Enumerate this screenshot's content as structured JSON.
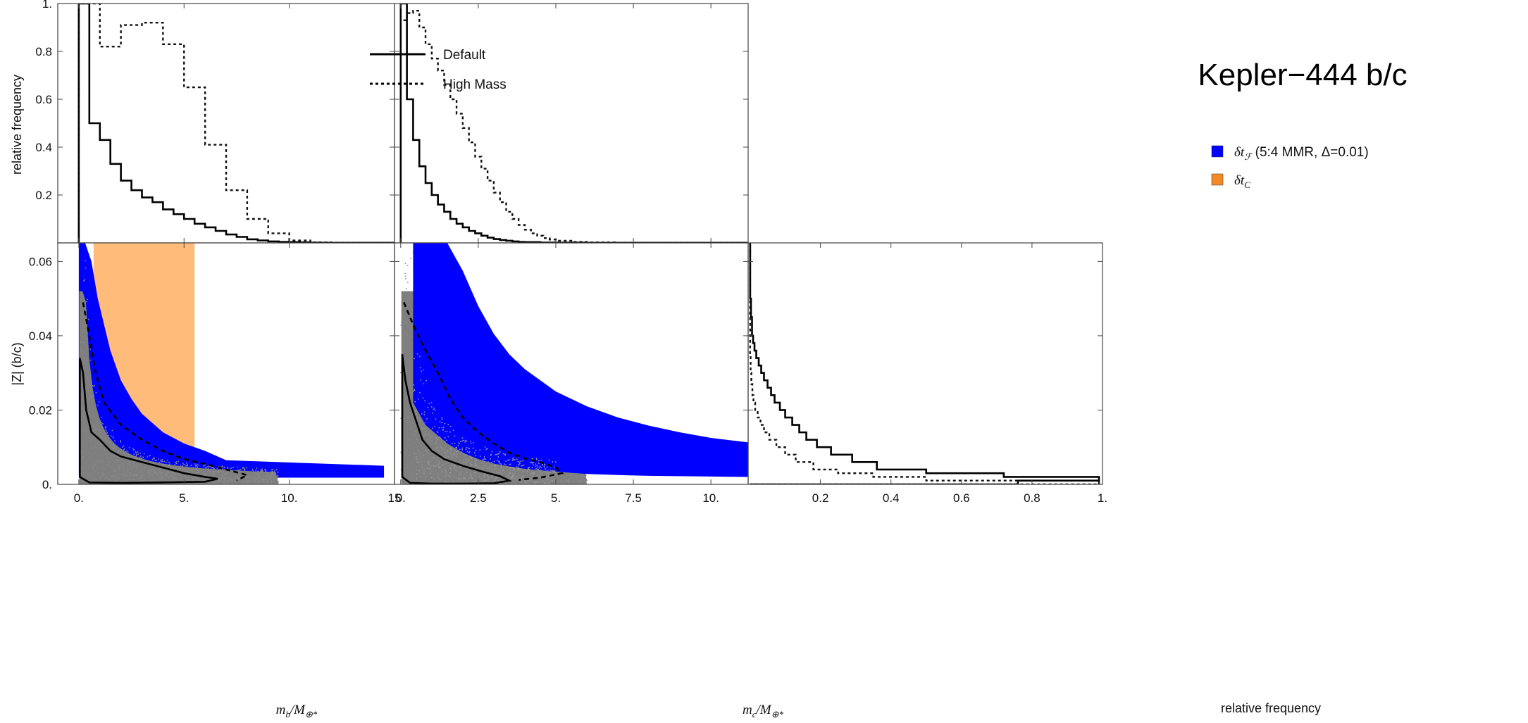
{
  "chart_data": {
    "type": "corner_plot",
    "title": "Kepler−444 b/c",
    "legend_histogram": [
      {
        "label": "Default",
        "style": "solid"
      },
      {
        "label": "High Mass",
        "style": "dotted"
      }
    ],
    "legend_regions": [
      {
        "label_main": "δt",
        "label_sub": "ℱ",
        "label_rest": " (5:4 MMR, Δ=0.01)",
        "color": "#0000ff"
      },
      {
        "label_main": "δt",
        "label_sub": "C",
        "label_rest": "",
        "color": "#f28a26"
      }
    ],
    "colors": {
      "forced": "#0000ff",
      "chopping": "#ffbb7a",
      "samples": "#7f7f7f",
      "contour": "#000000"
    },
    "axes": {
      "mb": {
        "label_main": "m",
        "label_sub": "b",
        "label_rest": "/M",
        "label_sub2": "⊕*",
        "lim": [
          -1,
          15
        ],
        "ticks": [
          0,
          5,
          10,
          15
        ],
        "tick_labels": [
          "0.",
          "5.",
          "10.",
          "15"
        ]
      },
      "mc": {
        "label_main": "m",
        "label_sub": "c",
        "label_rest": "/M",
        "label_sub2": "⊕*",
        "lim": [
          -0.2,
          11.2
        ],
        "ticks": [
          0,
          2.5,
          5,
          7.5,
          10
        ],
        "tick_labels": [
          "0.",
          "2.5",
          "5.",
          "7.5",
          "10."
        ]
      },
      "z": {
        "label": "|Z| (b/c)",
        "lim": [
          0,
          0.065
        ],
        "ticks": [
          0,
          0.02,
          0.04,
          0.06
        ],
        "tick_labels": [
          "0.",
          "0.02",
          "0.04",
          "0.06"
        ]
      },
      "freq": {
        "label": "relative frequency",
        "lim": [
          0,
          1
        ],
        "ticks": [
          0.2,
          0.4,
          0.6,
          0.8,
          1.0
        ],
        "tick_labels": [
          "0.2",
          "0.4",
          "0.6",
          "0.8",
          "1."
        ]
      }
    },
    "hist_mb": {
      "default": {
        "edges": [
          0,
          0.5,
          1,
          1.5,
          2,
          2.5,
          3,
          3.5,
          4,
          4.5,
          5,
          5.5,
          6,
          6.5,
          7,
          7.5,
          8,
          8.5,
          9,
          9.5,
          10,
          10.5,
          11,
          11.5,
          12,
          15
        ],
        "values": [
          1.0,
          0.5,
          0.43,
          0.33,
          0.26,
          0.22,
          0.19,
          0.17,
          0.14,
          0.12,
          0.1,
          0.08,
          0.065,
          0.05,
          0.035,
          0.025,
          0.015,
          0.01,
          0.006,
          0.004,
          0.003,
          0.002,
          0.001,
          0.0005,
          0.0002
        ]
      },
      "high_mass": {
        "edges": [
          0,
          1,
          2,
          3,
          4,
          5,
          6,
          7,
          8,
          9,
          10,
          11,
          12,
          15
        ],
        "values": [
          1.0,
          0.82,
          0.91,
          0.92,
          0.83,
          0.65,
          0.41,
          0.22,
          0.1,
          0.04,
          0.01,
          0.002,
          0.0005
        ]
      }
    },
    "hist_mc": {
      "default": {
        "edges": [
          0,
          0.2,
          0.4,
          0.6,
          0.8,
          1.0,
          1.2,
          1.4,
          1.6,
          1.8,
          2.0,
          2.2,
          2.4,
          2.6,
          2.8,
          3.0,
          3.2,
          3.4,
          3.6,
          3.8,
          4.0,
          4.5,
          5.0,
          6.0,
          11.2
        ],
        "values": [
          1.0,
          0.6,
          0.43,
          0.32,
          0.25,
          0.2,
          0.16,
          0.13,
          0.1,
          0.08,
          0.065,
          0.05,
          0.04,
          0.03,
          0.022,
          0.016,
          0.012,
          0.009,
          0.006,
          0.004,
          0.003,
          0.0015,
          0.0008,
          0.0002
        ]
      },
      "high_mass": {
        "edges": [
          0,
          0.2,
          0.4,
          0.6,
          0.8,
          1.0,
          1.2,
          1.4,
          1.6,
          1.8,
          2.0,
          2.2,
          2.4,
          2.6,
          2.8,
          3.0,
          3.2,
          3.4,
          3.6,
          3.8,
          4.0,
          4.2,
          4.4,
          4.6,
          4.8,
          5.0,
          5.5,
          6.0,
          7.0,
          11.2
        ],
        "values": [
          0.93,
          0.96,
          0.97,
          0.9,
          0.83,
          0.77,
          0.72,
          0.66,
          0.6,
          0.54,
          0.48,
          0.42,
          0.36,
          0.31,
          0.26,
          0.21,
          0.17,
          0.13,
          0.1,
          0.075,
          0.055,
          0.04,
          0.03,
          0.02,
          0.014,
          0.009,
          0.004,
          0.002,
          0.0005
        ]
      }
    },
    "hist_z": {
      "default": {
        "edges": [
          0,
          0.001,
          0.002,
          0.003,
          0.004,
          0.006,
          0.008,
          0.01,
          0.012,
          0.014,
          0.016,
          0.018,
          0.02,
          0.022,
          0.024,
          0.026,
          0.028,
          0.03,
          0.032,
          0.034,
          0.036,
          0.038,
          0.04,
          0.045,
          0.05,
          0.065
        ],
        "values": [
          0.76,
          0.99,
          0.72,
          0.5,
          0.36,
          0.29,
          0.23,
          0.19,
          0.16,
          0.14,
          0.12,
          0.1,
          0.085,
          0.07,
          0.06,
          0.05,
          0.04,
          0.032,
          0.025,
          0.018,
          0.013,
          0.009,
          0.006,
          0.003,
          0.0008
        ]
      },
      "high_mass": {
        "edges": [
          0,
          0.001,
          0.002,
          0.003,
          0.004,
          0.006,
          0.008,
          0.01,
          0.012,
          0.014,
          0.016,
          0.018,
          0.02,
          0.022,
          0.024,
          0.027,
          0.03,
          0.035,
          0.065
        ],
        "values": [
          0.99,
          0.5,
          0.35,
          0.25,
          0.18,
          0.13,
          0.1,
          0.075,
          0.055,
          0.04,
          0.03,
          0.022,
          0.015,
          0.01,
          0.007,
          0.004,
          0.002,
          0.0005
        ]
      }
    },
    "forced_band_mb": {
      "x": [
        0,
        0.3,
        0.6,
        0.9,
        1.2,
        1.5,
        2.0,
        2.5,
        3.0,
        4.0,
        5.0,
        6.0,
        7.0,
        14.5
      ],
      "z_upper": [
        0.065,
        0.065,
        0.06,
        0.05,
        0.043,
        0.036,
        0.028,
        0.023,
        0.019,
        0.014,
        0.011,
        0.009,
        0.0065,
        0.005
      ],
      "z_lower": [
        0.0018,
        0.0018,
        0.0018,
        0.0018,
        0.0018,
        0.0018,
        0.0018,
        0.0018,
        0.0018,
        0.0018,
        0.0018,
        0.0018,
        0.0018,
        0.0018
      ]
    },
    "chopping_region_mb": {
      "x_range": [
        0.7,
        5.5
      ],
      "z_range": [
        0.0045,
        0.065
      ]
    },
    "forced_band_mc": {
      "x": [
        0.4,
        0.8,
        1.5,
        2.0,
        2.5,
        3.0,
        3.5,
        4.0,
        5.0,
        6.0,
        7.0,
        8.0,
        9.0,
        10.0,
        11.2
      ],
      "z_upper": [
        0.065,
        0.065,
        0.065,
        0.0575,
        0.048,
        0.0405,
        0.035,
        0.031,
        0.025,
        0.021,
        0.018,
        0.0158,
        0.014,
        0.0125,
        0.0113
      ],
      "z_lower": [
        0.022,
        0.016,
        0.011,
        0.0085,
        0.0068,
        0.0056,
        0.0048,
        0.0042,
        0.0034,
        0.0028,
        0.0025,
        0.0023,
        0.0022,
        0.0021,
        0.002
      ]
    },
    "contour_mb_inner": [
      [
        0.05,
        0.034
      ],
      [
        0.2,
        0.03
      ],
      [
        0.35,
        0.02
      ],
      [
        0.6,
        0.014
      ],
      [
        1.0,
        0.012
      ],
      [
        1.5,
        0.009
      ],
      [
        2.0,
        0.0075
      ],
      [
        3.0,
        0.006
      ],
      [
        4.0,
        0.0045
      ],
      [
        5.0,
        0.003
      ],
      [
        6.0,
        0.002
      ],
      [
        6.6,
        0.0015
      ],
      [
        6.0,
        0.0007
      ],
      [
        4.0,
        0.0005
      ],
      [
        2.0,
        0.0004
      ],
      [
        0.5,
        0.0005
      ],
      [
        0.05,
        0.002
      ]
    ],
    "contour_mb_outer": [
      [
        0.2,
        0.049
      ],
      [
        0.5,
        0.04
      ],
      [
        0.8,
        0.03
      ],
      [
        1.2,
        0.022
      ],
      [
        2.0,
        0.016
      ],
      [
        3.0,
        0.012
      ],
      [
        4.0,
        0.009
      ],
      [
        5.0,
        0.0068
      ],
      [
        6.0,
        0.0055
      ],
      [
        7.0,
        0.004
      ],
      [
        8.0,
        0.0025
      ],
      [
        7.5,
        0.001
      ]
    ],
    "contour_mc_inner": [
      [
        0.05,
        0.035
      ],
      [
        0.15,
        0.028
      ],
      [
        0.3,
        0.022
      ],
      [
        0.5,
        0.017
      ],
      [
        0.7,
        0.012
      ],
      [
        1.0,
        0.009
      ],
      [
        1.4,
        0.0068
      ],
      [
        2.0,
        0.005
      ],
      [
        2.6,
        0.0035
      ],
      [
        3.2,
        0.0022
      ],
      [
        3.5,
        0.001
      ],
      [
        3.0,
        0.0003
      ],
      [
        2.0,
        0.0002
      ],
      [
        1.0,
        0.0002
      ],
      [
        0.3,
        0.0004
      ],
      [
        0.05,
        0.002
      ]
    ],
    "contour_mc_outer": [
      [
        0.1,
        0.049
      ],
      [
        0.4,
        0.043
      ],
      [
        0.8,
        0.036
      ],
      [
        1.2,
        0.03
      ],
      [
        1.6,
        0.023
      ],
      [
        2.0,
        0.018
      ],
      [
        2.5,
        0.014
      ],
      [
        3.0,
        0.011
      ],
      [
        3.5,
        0.0085
      ],
      [
        4.0,
        0.007
      ],
      [
        4.5,
        0.006
      ],
      [
        5.0,
        0.0045
      ],
      [
        5.2,
        0.003
      ],
      [
        4.5,
        0.0018
      ],
      [
        3.8,
        0.0012
      ]
    ]
  }
}
